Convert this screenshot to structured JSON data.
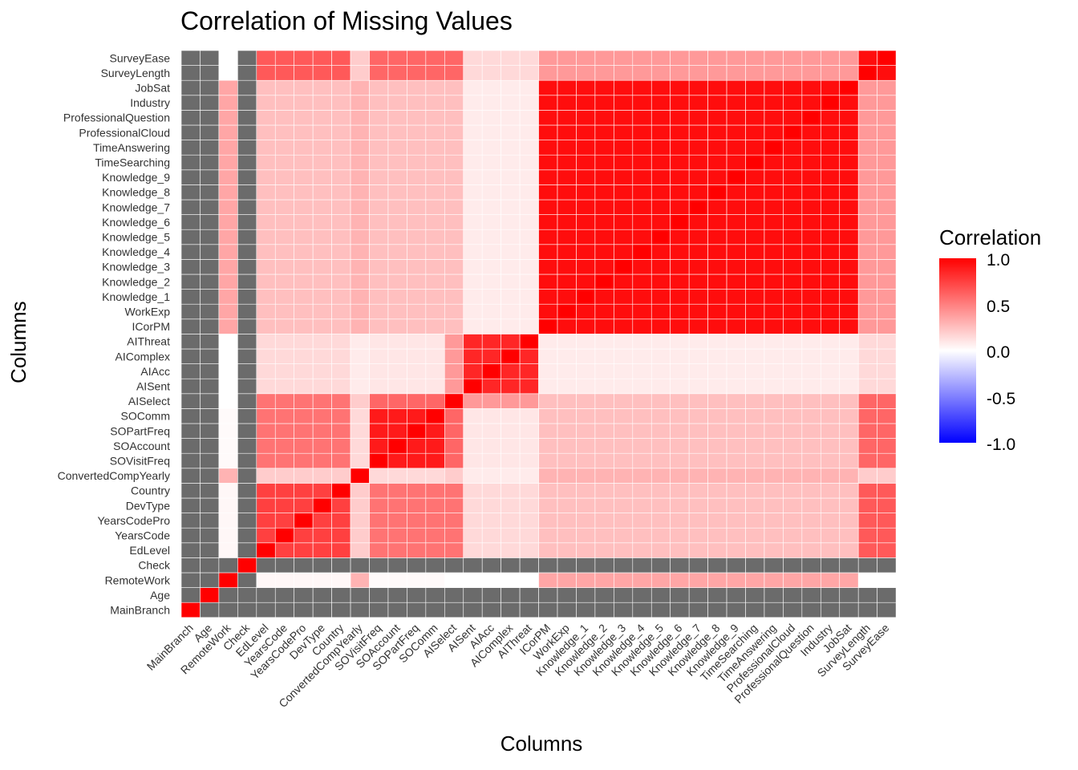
{
  "chart_data": {
    "type": "heatmap",
    "title": "Correlation of Missing Values",
    "xlabel": "Columns",
    "ylabel": "Columns",
    "legend": {
      "title": "Correlation",
      "position": "right",
      "range": [
        -1.0,
        1.0
      ],
      "ticks": [
        "1.0",
        "0.5",
        "0.0",
        "-0.5",
        "-1.0"
      ],
      "colors": {
        "low": "#0000ff",
        "mid": "#ffffff",
        "high": "#ff0000",
        "na": "#6b6b6b"
      }
    },
    "variables": [
      "MainBranch",
      "Age",
      "RemoteWork",
      "Check",
      "EdLevel",
      "YearsCode",
      "YearsCodePro",
      "DevType",
      "Country",
      "ConvertedCompYearly",
      "SOVisitFreq",
      "SOAccount",
      "SOPartFreq",
      "SOComm",
      "AISelect",
      "AISent",
      "AIAcc",
      "AIComplex",
      "AIThreat",
      "ICorPM",
      "WorkExp",
      "Knowledge_1",
      "Knowledge_2",
      "Knowledge_3",
      "Knowledge_4",
      "Knowledge_5",
      "Knowledge_6",
      "Knowledge_7",
      "Knowledge_8",
      "Knowledge_9",
      "TimeSearching",
      "TimeAnswering",
      "ProfessionalCloud",
      "ProfessionalQuestion",
      "Industry",
      "JobSat",
      "SurveyLength",
      "SurveyEase"
    ],
    "groups": {
      "core": [
        "EdLevel",
        "YearsCode",
        "YearsCodePro",
        "DevType",
        "Country"
      ],
      "so": [
        "SOVisitFreq",
        "SOAccount",
        "SOPartFreq",
        "SOComm"
      ],
      "ai": [
        "AISent",
        "AIAcc",
        "AIComplex",
        "AIThreat"
      ],
      "prof": [
        "ICorPM",
        "WorkExp",
        "Knowledge_1",
        "Knowledge_2",
        "Knowledge_3",
        "Knowledge_4",
        "Knowledge_5",
        "Knowledge_6",
        "Knowledge_7",
        "Knowledge_8",
        "Knowledge_9",
        "TimeSearching",
        "TimeAnswering",
        "ProfessionalCloud",
        "ProfessionalQuestion",
        "Industry",
        "JobSat"
      ],
      "survey": [
        "SurveyLength",
        "SurveyEase"
      ]
    },
    "na_variables": [
      "MainBranch",
      "Age",
      "Check"
    ],
    "correlations": {
      "core-core": 0.75,
      "core-so": 0.55,
      "core-ai": 0.15,
      "core-prof": 0.25,
      "core-survey": 0.65,
      "core-AISelect": 0.55,
      "core-ConvertedCompYearly": 0.2,
      "core-RemoteWork": 0.03,
      "so-so": 0.9,
      "so-ai": 0.1,
      "so-prof": 0.25,
      "so-survey": 0.6,
      "so-AISelect": 0.6,
      "so-ConvertedCompYearly": 0.15,
      "so-RemoteWork": 0.02,
      "ai-ai": 0.85,
      "ai-prof": 0.08,
      "ai-survey": 0.15,
      "ai-AISelect": 0.4,
      "ai-ConvertedCompYearly": 0.08,
      "ai-RemoteWork": 0.0,
      "prof-prof": 0.95,
      "prof-survey": 0.4,
      "prof-AISelect": 0.25,
      "prof-ConvertedCompYearly": 0.3,
      "prof-RemoteWork": 0.35,
      "survey-survey": 0.95,
      "survey-AISelect": 0.6,
      "survey-ConvertedCompYearly": 0.2,
      "survey-RemoteWork": 0.0,
      "AISelect-ConvertedCompYearly": 0.2,
      "AISelect-RemoteWork": 0.0,
      "ConvertedCompYearly-RemoteWork": 0.3
    }
  }
}
